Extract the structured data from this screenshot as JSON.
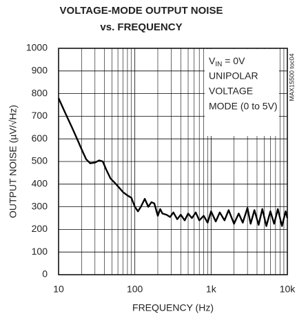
{
  "chart_data": {
    "type": "line",
    "title": [
      "VOLTAGE-MODE OUTPUT NOISE",
      "vs. FREQUENCY"
    ],
    "xlabel": "FREQUENCY (Hz)",
    "ylabel": "OUTPUT NOISE (µV/√Hz)",
    "annotation": {
      "v": "V",
      "sub": "IN",
      "rest": " = 0V",
      "lines": [
        "UNIPOLAR",
        "VOLTAGE",
        "MODE (0 to 5V)"
      ]
    },
    "side_label": "MAX15500 toc04",
    "x": [
      10,
      12,
      15,
      18,
      20,
      23,
      26,
      30,
      34,
      38,
      42,
      48,
      55,
      62,
      70,
      80,
      90,
      100,
      110,
      120,
      135,
      150,
      165,
      180,
      200,
      215,
      230,
      260,
      290,
      320,
      360,
      400,
      450,
      500,
      560,
      630,
      700,
      800,
      900,
      1000,
      1150,
      1300,
      1500,
      1700,
      2000,
      2300,
      2600,
      3000,
      3300,
      3700,
      4200,
      4700,
      5300,
      6000,
      6700,
      7500,
      8500,
      9500,
      10000
    ],
    "series": [
      {
        "color": "#000000",
        "values": [
          780,
          720,
          650,
          590,
          555,
          510,
          492,
          495,
          505,
          500,
          465,
          425,
          405,
          385,
          365,
          350,
          340,
          300,
          280,
          300,
          335,
          300,
          320,
          315,
          260,
          290,
          270,
          265,
          255,
          275,
          245,
          265,
          240,
          270,
          250,
          275,
          240,
          260,
          230,
          280,
          235,
          275,
          240,
          285,
          225,
          270,
          230,
          295,
          225,
          285,
          220,
          290,
          215,
          280,
          225,
          290,
          215,
          280,
          250
        ]
      }
    ],
    "xlim": [
      10,
      10000
    ],
    "xscale": "log",
    "xticks": [
      10,
      100,
      {
        "value": 1000,
        "label": "1k"
      },
      {
        "value": 10000,
        "label": "10k"
      }
    ],
    "ylim": [
      0,
      1000
    ],
    "yticks": [
      0,
      100,
      200,
      300,
      400,
      500,
      600,
      700,
      800,
      900,
      1000
    ],
    "grid": true
  }
}
